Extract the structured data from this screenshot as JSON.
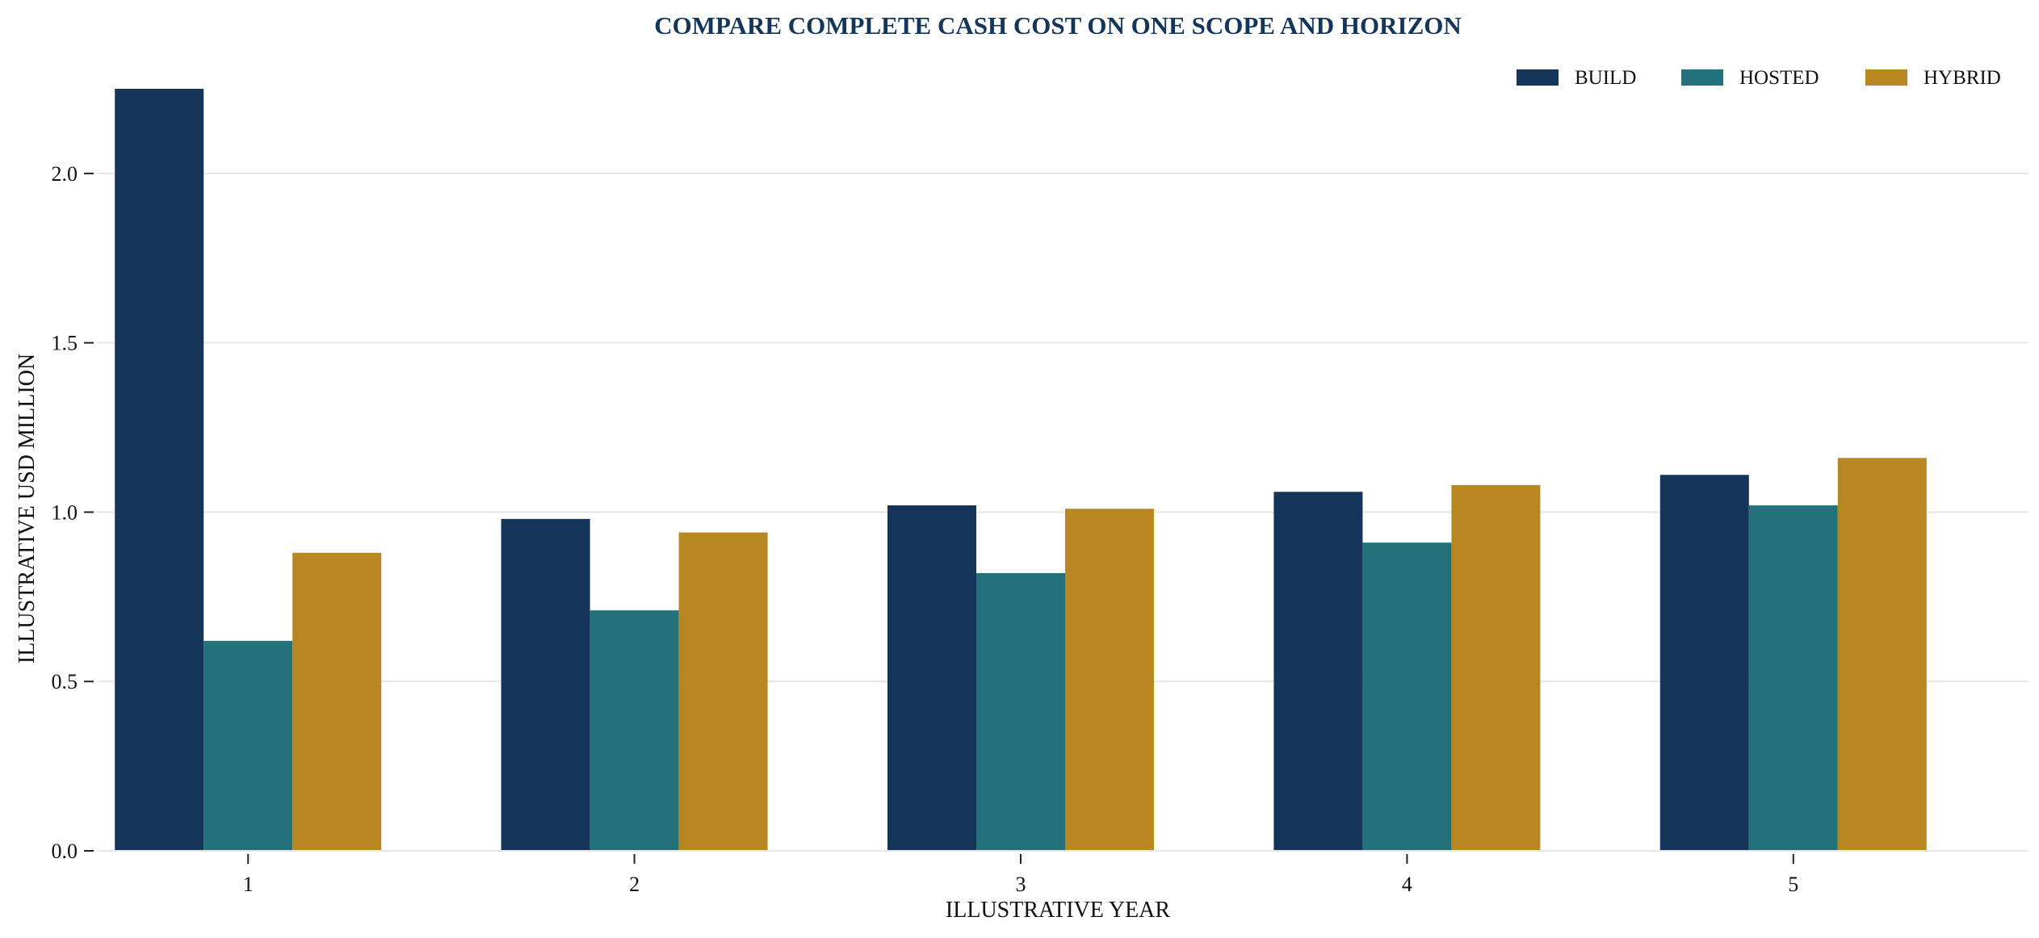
{
  "chart_data": {
    "type": "bar",
    "title": "COMPARE COMPLETE CASH COST ON ONE SCOPE AND HORIZON",
    "xlabel": "ILLUSTRATIVE YEAR",
    "ylabel": "ILLUSTRATIVE USD MILLION",
    "categories": [
      "1",
      "2",
      "3",
      "4",
      "5"
    ],
    "ylim": [
      0,
      2.25
    ],
    "yticks": [
      "0.0",
      "0.5",
      "1.0",
      "1.5",
      "2.0"
    ],
    "grid": "horizontal",
    "legend_position": "top-right",
    "series": [
      {
        "name": "BUILD",
        "color": "#143459",
        "values": [
          2.25,
          0.98,
          1.02,
          1.06,
          1.11
        ]
      },
      {
        "name": "HOSTED",
        "color": "#23727b",
        "values": [
          0.62,
          0.71,
          0.82,
          0.91,
          1.02
        ]
      },
      {
        "name": "HYBRID",
        "color": "#b78721",
        "values": [
          0.88,
          0.94,
          1.01,
          1.08,
          1.16
        ]
      }
    ]
  }
}
